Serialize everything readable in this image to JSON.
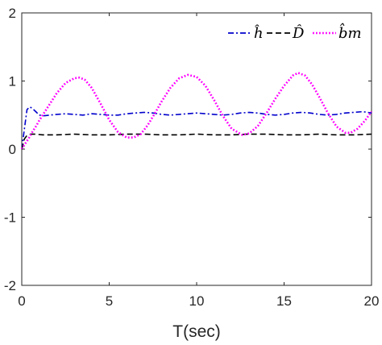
{
  "chart_data": {
    "type": "line",
    "title": "",
    "xlabel": "T(sec)",
    "ylabel": "",
    "xlim": [
      0,
      20
    ],
    "ylim": [
      -2,
      2
    ],
    "xticks": [
      "0",
      "5",
      "10",
      "15",
      "20"
    ],
    "yticks": [
      "-2",
      "-1",
      "0",
      "1",
      "2"
    ],
    "grid": false,
    "legend_position": "top-right",
    "series": [
      {
        "name": "ĥ",
        "color": "#0000cc",
        "style": "dash-dot",
        "x": [
          0,
          0.15,
          0.3,
          0.45,
          0.6,
          0.8,
          1.0,
          1.3,
          1.6,
          2.0,
          2.5,
          3.0,
          3.5,
          4.0,
          4.5,
          5.0,
          5.5,
          6.0,
          6.5,
          7.0,
          7.5,
          8.0,
          8.5,
          9.0,
          9.5,
          10.0,
          10.5,
          11.0,
          11.5,
          12.0,
          12.5,
          13.0,
          13.5,
          14.0,
          14.5,
          15.0,
          15.5,
          16.0,
          16.5,
          17.0,
          17.5,
          18.0,
          18.5,
          19.0,
          19.5,
          20.0
        ],
        "y": [
          0.0,
          0.3,
          0.58,
          0.62,
          0.6,
          0.55,
          0.5,
          0.49,
          0.5,
          0.51,
          0.52,
          0.51,
          0.5,
          0.52,
          0.51,
          0.5,
          0.5,
          0.52,
          0.53,
          0.54,
          0.53,
          0.51,
          0.5,
          0.51,
          0.52,
          0.53,
          0.52,
          0.51,
          0.5,
          0.51,
          0.53,
          0.54,
          0.53,
          0.51,
          0.5,
          0.51,
          0.53,
          0.54,
          0.53,
          0.51,
          0.5,
          0.51,
          0.53,
          0.54,
          0.55,
          0.53
        ]
      },
      {
        "name": "D̂",
        "color": "#000000",
        "style": "dashed",
        "x": [
          0,
          0.15,
          0.3,
          0.5,
          0.8,
          1.2,
          2,
          3,
          4,
          5,
          6,
          7,
          8,
          9,
          10,
          11,
          12,
          13,
          14,
          15,
          16,
          17,
          18,
          19,
          20
        ],
        "y": [
          0.0,
          0.15,
          0.2,
          0.22,
          0.22,
          0.21,
          0.21,
          0.22,
          0.21,
          0.21,
          0.22,
          0.22,
          0.21,
          0.21,
          0.22,
          0.21,
          0.21,
          0.22,
          0.22,
          0.21,
          0.21,
          0.22,
          0.21,
          0.21,
          0.22
        ]
      },
      {
        "name": "b̂m",
        "color": "#ff00ff",
        "style": "dotted",
        "x": [
          0,
          0.2,
          0.4,
          0.6,
          0.8,
          1.0,
          1.5,
          2.0,
          2.5,
          3.0,
          3.3,
          3.6,
          4.0,
          4.5,
          5.0,
          5.5,
          6.0,
          6.4,
          6.8,
          7.2,
          7.6,
          8.0,
          8.5,
          9.0,
          9.5,
          10.0,
          10.5,
          11.0,
          11.5,
          12.0,
          12.6,
          13.0,
          13.5,
          14.0,
          14.5,
          15.0,
          15.5,
          15.8,
          16.2,
          16.6,
          17.0,
          17.5,
          18.0,
          18.5,
          18.8,
          19.2,
          19.6,
          20.0
        ],
        "y": [
          0.0,
          0.08,
          0.16,
          0.25,
          0.33,
          0.42,
          0.62,
          0.82,
          0.97,
          1.04,
          1.05,
          1.02,
          0.9,
          0.67,
          0.43,
          0.25,
          0.17,
          0.17,
          0.22,
          0.35,
          0.52,
          0.7,
          0.9,
          1.04,
          1.09,
          1.06,
          0.93,
          0.72,
          0.49,
          0.3,
          0.21,
          0.23,
          0.34,
          0.53,
          0.74,
          0.93,
          1.08,
          1.12,
          1.08,
          0.95,
          0.77,
          0.53,
          0.33,
          0.24,
          0.24,
          0.3,
          0.41,
          0.55
        ]
      }
    ]
  }
}
